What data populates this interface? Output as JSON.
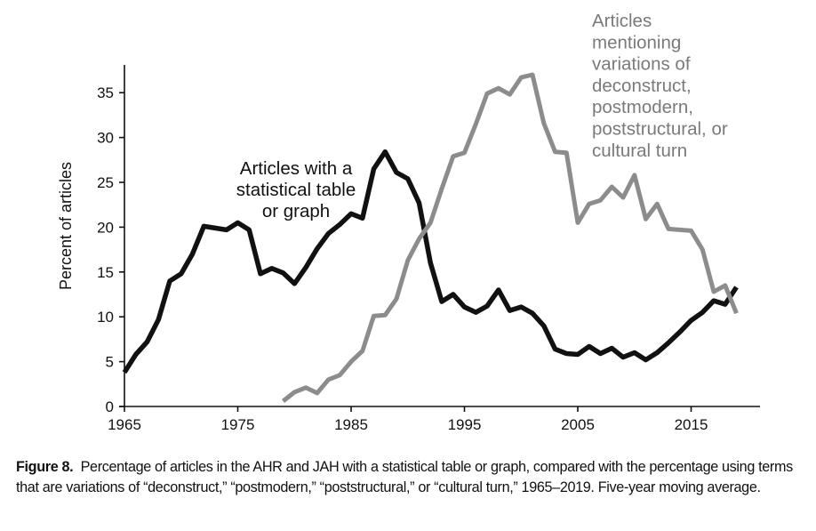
{
  "chart_data": {
    "type": "line",
    "title": "",
    "xlabel": "",
    "ylabel": "Percent of articles",
    "xlim": [
      1965,
      2021
    ],
    "ylim": [
      0,
      38
    ],
    "grid": false,
    "x_ticks": [
      1965,
      1975,
      1985,
      1995,
      2005,
      2015
    ],
    "x_tick_labels": [
      "1965",
      "1975",
      "1985",
      "1995",
      "2005",
      "2015"
    ],
    "y_ticks": [
      0,
      5,
      10,
      15,
      20,
      25,
      30,
      35
    ],
    "y_tick_labels": [
      "0",
      "5",
      "10",
      "15",
      "20",
      "25",
      "30",
      "35"
    ],
    "series": [
      {
        "name": "Articles with a statistical table or graph",
        "color": "#111111",
        "start_year": 1965,
        "annotation_lines": [
          "Articles with a",
          "statistical table",
          "or graph"
        ],
        "values": [
          3.8,
          5.8,
          7.2,
          9.7,
          14.0,
          14.8,
          17.0,
          20.1,
          19.9,
          19.7,
          20.5,
          19.7,
          14.8,
          15.4,
          14.9,
          13.7,
          15.5,
          17.6,
          19.3,
          20.3,
          21.5,
          21.0,
          26.5,
          28.4,
          26.1,
          25.4,
          22.7,
          16.0,
          11.7,
          12.5,
          11.1,
          10.5,
          11.2,
          13.0,
          10.7,
          11.1,
          10.4,
          9.0,
          6.4,
          5.9,
          5.8,
          6.7,
          5.9,
          6.5,
          5.5,
          6.0,
          5.2,
          6.0,
          7.1,
          8.3,
          9.6,
          10.5,
          11.8,
          11.4,
          13.3
        ]
      },
      {
        "name": "Articles mentioning variations of deconstruct, postmodern, poststructural, or cultural turn",
        "color": "#8c8c8c",
        "start_year": 1979,
        "annotation_lines": [
          "Articles",
          "mentioning",
          "variations of",
          "deconstruct,",
          "postmodern,",
          "poststructural, or",
          "cultural turn"
        ],
        "values": [
          0.6,
          1.6,
          2.1,
          1.5,
          3.0,
          3.5,
          5.0,
          6.2,
          10.1,
          10.2,
          12.0,
          16.3,
          18.7,
          20.5,
          24.3,
          27.9,
          28.3,
          31.5,
          34.9,
          35.5,
          34.8,
          36.7,
          37.0,
          31.6,
          28.4,
          28.3,
          20.5,
          22.6,
          23.0,
          24.5,
          23.3,
          25.8,
          20.9,
          22.6,
          19.8,
          19.7,
          19.6,
          17.5,
          12.8,
          13.5,
          10.4
        ]
      }
    ]
  },
  "caption": {
    "label": "Figure 8.",
    "text": "Percentage of articles in the AHR and JAH with a statistical table or graph, compared with the percentage using terms that are variations of “deconstruct,” “postmodern,” “poststructural,” or “cultural turn,” 1965–2019. Five-year moving average."
  }
}
